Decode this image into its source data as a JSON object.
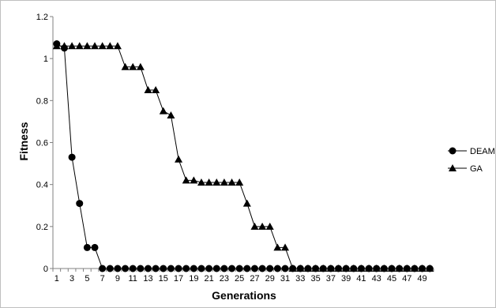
{
  "chart_data": {
    "type": "line",
    "title": "",
    "xlabel": "Generations",
    "ylabel": "Fitness",
    "x": [
      1,
      2,
      3,
      4,
      5,
      6,
      7,
      8,
      9,
      10,
      11,
      12,
      13,
      14,
      15,
      16,
      17,
      18,
      19,
      20,
      21,
      22,
      23,
      24,
      25,
      26,
      27,
      28,
      29,
      30,
      31,
      32,
      33,
      34,
      35,
      36,
      37,
      38,
      39,
      40,
      41,
      42,
      43,
      44,
      45,
      46,
      47,
      48,
      49,
      50
    ],
    "x_tick_labels": [
      "1",
      "3",
      "5",
      "7",
      "9",
      "11",
      "13",
      "15",
      "17",
      "19",
      "21",
      "23",
      "25",
      "27",
      "29",
      "31",
      "33",
      "35",
      "37",
      "39",
      "41",
      "43",
      "45",
      "47",
      "49"
    ],
    "ylim": [
      0,
      1.2
    ],
    "y_ticks": [
      0,
      0.2,
      0.4,
      0.6,
      0.8,
      1,
      1.2
    ],
    "y_tick_labels": [
      "0",
      "0.2",
      "0.4",
      "0.6",
      "0.8",
      "1",
      "1.2"
    ],
    "grid": false,
    "legend_position": "right",
    "series": [
      {
        "name": "DEAM",
        "marker": "circle",
        "color": "#000000",
        "values": [
          1.07,
          1.05,
          0.53,
          0.31,
          0.1,
          0.1,
          0,
          0,
          0,
          0,
          0,
          0,
          0,
          0,
          0,
          0,
          0,
          0,
          0,
          0,
          0,
          0,
          0,
          0,
          0,
          0,
          0,
          0,
          0,
          0,
          0,
          0,
          0,
          0,
          0,
          0,
          0,
          0,
          0,
          0,
          0,
          0,
          0,
          0,
          0,
          0,
          0,
          0,
          0,
          0
        ]
      },
      {
        "name": "GA",
        "marker": "triangle",
        "color": "#000000",
        "values": [
          1.06,
          1.06,
          1.06,
          1.06,
          1.06,
          1.06,
          1.06,
          1.06,
          1.06,
          0.96,
          0.96,
          0.96,
          0.85,
          0.85,
          0.75,
          0.73,
          0.52,
          0.42,
          0.42,
          0.41,
          0.41,
          0.41,
          0.41,
          0.41,
          0.41,
          0.31,
          0.2,
          0.2,
          0.2,
          0.1,
          0.1,
          0,
          0,
          0,
          0,
          0,
          0,
          0,
          0,
          0,
          0,
          0,
          0,
          0,
          0,
          0,
          0,
          0,
          0,
          0
        ]
      }
    ]
  }
}
